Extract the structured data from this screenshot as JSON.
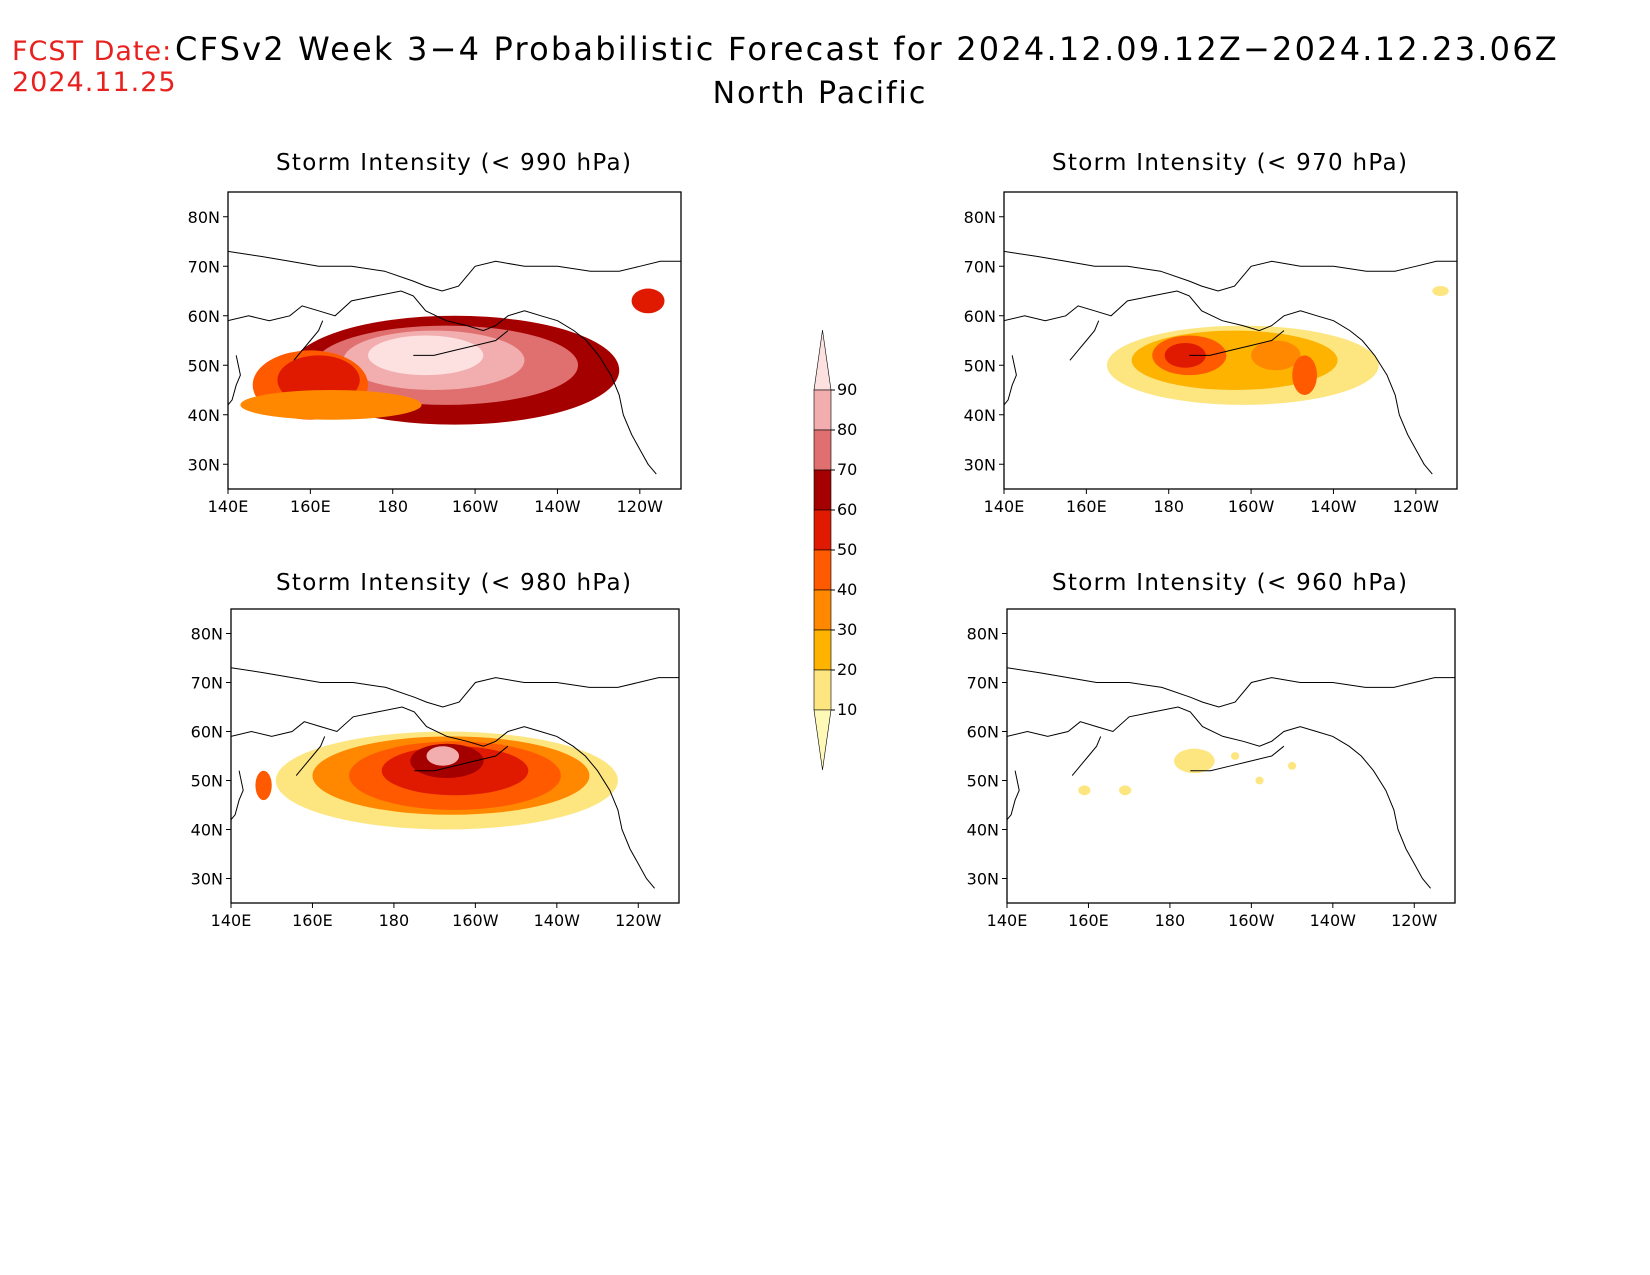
{
  "header": {
    "fcst_label": "FCST Date:",
    "fcst_date": "2024.11.25",
    "title": "CFSv2 Week 3−4 Probabilistic Forecast for 2024.12.09.12Z−2024.12.23.06Z",
    "region": "North Pacific"
  },
  "axes": {
    "lon_ticks": [
      "140E",
      "160E",
      "180",
      "160W",
      "140W",
      "120W"
    ],
    "lat_ticks": [
      "80N",
      "70N",
      "60N",
      "50N",
      "40N",
      "30N"
    ],
    "lon_range": [
      140,
      250
    ],
    "lat_range": [
      25,
      85
    ]
  },
  "colorbar": {
    "levels": [
      "10",
      "20",
      "30",
      "40",
      "50",
      "60",
      "70",
      "80",
      "90"
    ],
    "colors": [
      "#fff9b8",
      "#fde680",
      "#fdb300",
      "#ff8800",
      "#ff5a00",
      "#e01a00",
      "#a50000",
      "#e07070",
      "#f2aeae",
      "#fde0e0"
    ]
  },
  "panels": [
    {
      "id": "990",
      "title": "Storm Intensity (< 990 hPa)",
      "blobs": [
        {
          "lon": 195,
          "lat": 49,
          "rx": 40,
          "ry": 11,
          "level": 6
        },
        {
          "lon": 193,
          "lat": 50,
          "rx": 32,
          "ry": 8,
          "level": 7
        },
        {
          "lon": 190,
          "lat": 51,
          "rx": 22,
          "ry": 6,
          "level": 8
        },
        {
          "lon": 188,
          "lat": 52,
          "rx": 14,
          "ry": 4,
          "level": 9
        },
        {
          "lon": 160,
          "lat": 46,
          "rx": 14,
          "ry": 7,
          "level": 4
        },
        {
          "lon": 162,
          "lat": 47,
          "rx": 10,
          "ry": 5,
          "level": 5
        },
        {
          "lon": 165,
          "lat": 42,
          "rx": 22,
          "ry": 3,
          "level": 3
        },
        {
          "lon": 242,
          "lat": 63,
          "rx": 4,
          "ry": 2.5,
          "level": 5
        }
      ]
    },
    {
      "id": "970",
      "title": "Storm Intensity (< 970 hPa)",
      "blobs": [
        {
          "lon": 198,
          "lat": 50,
          "rx": 33,
          "ry": 8,
          "level": 1
        },
        {
          "lon": 196,
          "lat": 51,
          "rx": 25,
          "ry": 6,
          "level": 2
        },
        {
          "lon": 185,
          "lat": 52,
          "rx": 9,
          "ry": 4,
          "level": 4
        },
        {
          "lon": 184,
          "lat": 52,
          "rx": 5,
          "ry": 2.5,
          "level": 5
        },
        {
          "lon": 206,
          "lat": 52,
          "rx": 6,
          "ry": 3,
          "level": 3
        },
        {
          "lon": 213,
          "lat": 48,
          "rx": 3,
          "ry": 4,
          "level": 4
        },
        {
          "lon": 246,
          "lat": 65,
          "rx": 2,
          "ry": 1,
          "level": 1
        }
      ]
    },
    {
      "id": "980",
      "title": "Storm Intensity (< 980 hPa)",
      "blobs": [
        {
          "lon": 193,
          "lat": 50,
          "rx": 42,
          "ry": 10,
          "level": 1
        },
        {
          "lon": 194,
          "lat": 51,
          "rx": 34,
          "ry": 8,
          "level": 3
        },
        {
          "lon": 195,
          "lat": 51,
          "rx": 26,
          "ry": 7,
          "level": 4
        },
        {
          "lon": 195,
          "lat": 52,
          "rx": 18,
          "ry": 5,
          "level": 5
        },
        {
          "lon": 193,
          "lat": 54,
          "rx": 9,
          "ry": 3.5,
          "level": 6
        },
        {
          "lon": 192,
          "lat": 55,
          "rx": 4,
          "ry": 2,
          "level": 8
        },
        {
          "lon": 148,
          "lat": 49,
          "rx": 2,
          "ry": 3,
          "level": 4
        }
      ]
    },
    {
      "id": "960",
      "title": "Storm Intensity (< 960 hPa)",
      "blobs": [
        {
          "lon": 186,
          "lat": 54,
          "rx": 5,
          "ry": 2.5,
          "level": 1
        },
        {
          "lon": 159,
          "lat": 48,
          "rx": 1.5,
          "ry": 1,
          "level": 1
        },
        {
          "lon": 169,
          "lat": 48,
          "rx": 1.5,
          "ry": 1,
          "level": 1
        },
        {
          "lon": 196,
          "lat": 55,
          "rx": 1,
          "ry": 0.8,
          "level": 1
        },
        {
          "lon": 202,
          "lat": 50,
          "rx": 1,
          "ry": 0.8,
          "level": 1
        },
        {
          "lon": 210,
          "lat": 53,
          "rx": 1,
          "ry": 0.8,
          "level": 1
        }
      ]
    }
  ]
}
